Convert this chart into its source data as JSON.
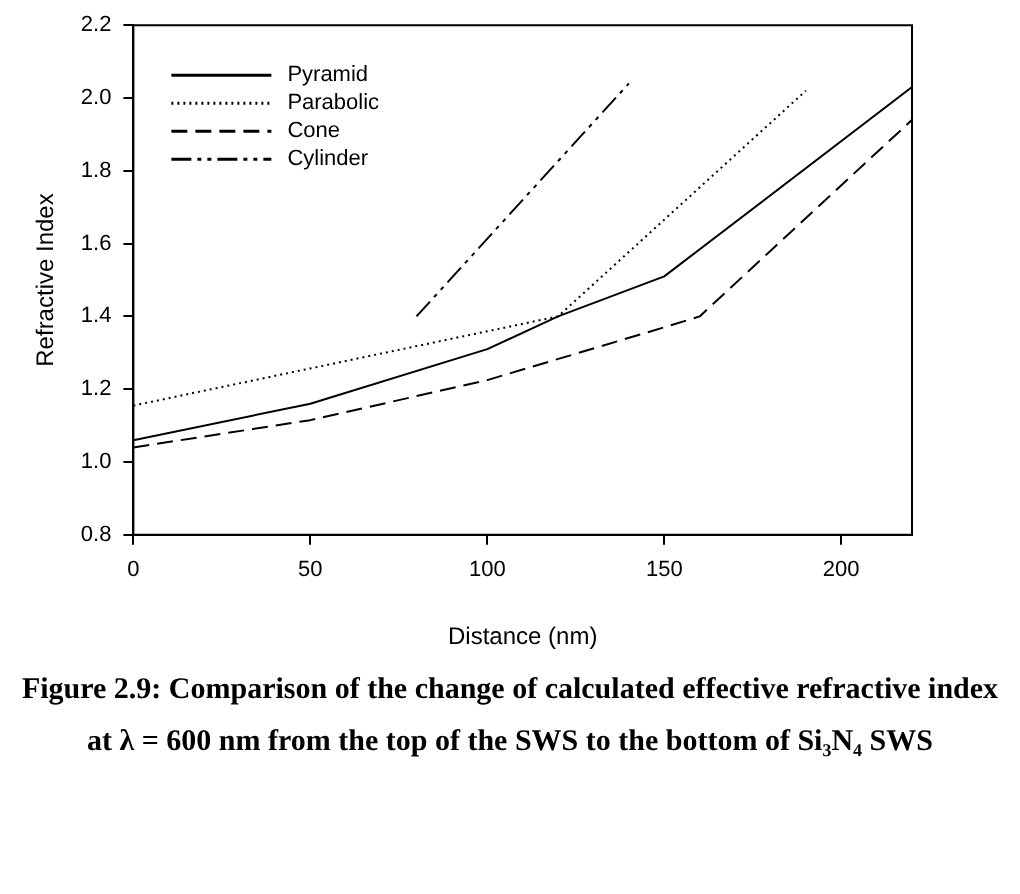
{
  "chart_data": {
    "type": "line",
    "xlabel": "Distance (nm)",
    "ylabel": "Refractive Index",
    "xlim": [
      0,
      220
    ],
    "xticks": [
      0,
      50,
      100,
      150,
      200
    ],
    "ylim": [
      0.8,
      2.2
    ],
    "yticks": [
      {
        "value": 0.8,
        "label": "0.8"
      },
      {
        "value": 1.0,
        "label": "1.0"
      },
      {
        "value": 1.2,
        "label": "1.2"
      },
      {
        "value": 1.4,
        "label": "1.4"
      },
      {
        "value": 1.6,
        "label": "1.6"
      },
      {
        "value": 1.8,
        "label": "1.8"
      },
      {
        "value": 2.0,
        "label": "2.0"
      },
      {
        "value": 2.2,
        "label": "2.2"
      }
    ],
    "grid": false,
    "legend": "top left",
    "marker": "none",
    "series": [
      {
        "name": "Pyramid",
        "color": "#000000",
        "line_style": "solid",
        "x": [
          0,
          50,
          100,
          120,
          150,
          220
        ],
        "values": [
          1.06,
          1.16,
          1.31,
          1.4,
          1.51,
          2.03
        ]
      },
      {
        "name": "Parabolic",
        "color": "#000000",
        "line_style": "dotted",
        "x": [
          0,
          120,
          190
        ],
        "values": [
          1.155,
          1.4,
          2.02
        ]
      },
      {
        "name": "Cone",
        "color": "#000000",
        "line_style": "dashed",
        "x": [
          0,
          50,
          100,
          150,
          160,
          220
        ],
        "values": [
          1.04,
          1.115,
          1.225,
          1.37,
          1.4,
          1.94
        ]
      },
      {
        "name": "Cylinder",
        "color": "#000000",
        "line_style": "dashdotdot",
        "x": [
          80,
          140
        ],
        "values": [
          1.4,
          2.04
        ]
      }
    ],
    "annotations": [
      "Figure 2.9: Comparison of the change of calculated effective refractive index",
      "at λ = 600 nm from the top of the SWS to the bottom of Si₃N₄ SWS"
    ]
  }
}
